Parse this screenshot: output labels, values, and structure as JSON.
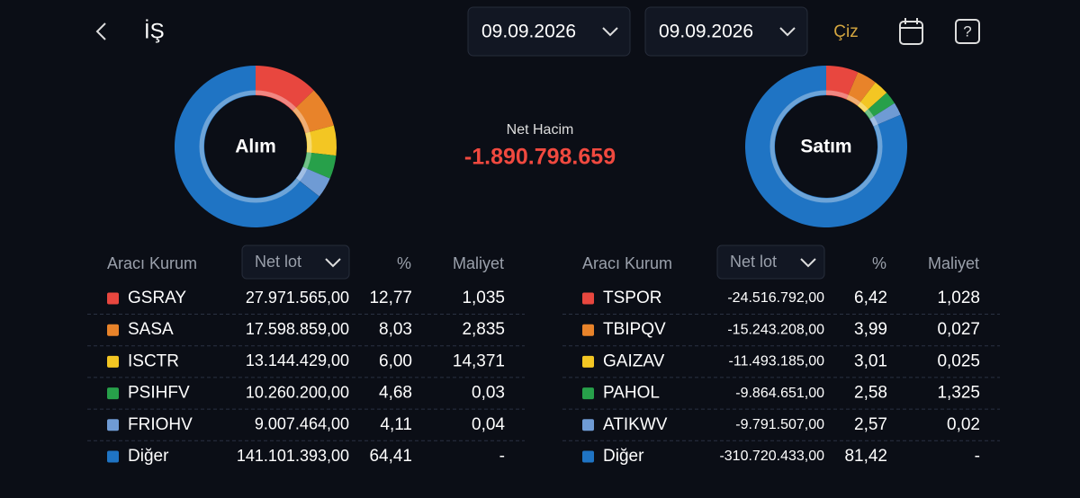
{
  "header": {
    "title": "İŞ",
    "date_from": "09.09.2026",
    "date_to": "09.09.2026",
    "draw_button": "Çiz"
  },
  "summary": {
    "label": "Net Hacim",
    "value": "-1.890.798.659"
  },
  "buy": {
    "center_label": "Alım",
    "columns": {
      "broker": "Aracı Kurum",
      "net_lot": "Net lot",
      "pct": "%",
      "cost": "Maliyet"
    },
    "rows": [
      {
        "name": "GSRAY",
        "color": "#e8473f",
        "net_lot": "27.971.565,00",
        "pct": {
          "value": 12.77,
          "label": "12,77"
        },
        "cost": "1,035"
      },
      {
        "name": "SASA",
        "color": "#e8832a",
        "net_lot": "17.598.859,00",
        "pct": {
          "value": 8.03,
          "label": "8,03"
        },
        "cost": "2,835"
      },
      {
        "name": "ISCTR",
        "color": "#f3c623",
        "net_lot": "13.144.429,00",
        "pct": {
          "value": 6.0,
          "label": "6,00"
        },
        "cost": "14,371"
      },
      {
        "name": "PSIHFV",
        "color": "#27a04a",
        "net_lot": "10.260.200,00",
        "pct": {
          "value": 4.68,
          "label": "4,68"
        },
        "cost": "0,03"
      },
      {
        "name": "FRIOHV",
        "color": "#6f9bd4",
        "net_lot": "9.007.464,00",
        "pct": {
          "value": 4.11,
          "label": "4,11"
        },
        "cost": "0,04"
      },
      {
        "name": "Diğer",
        "color": "#1f74c4",
        "net_lot": "141.101.393,00",
        "pct": {
          "value": 64.41,
          "label": "64,41"
        },
        "cost": "-"
      }
    ]
  },
  "sell": {
    "center_label": "Satım",
    "columns": {
      "broker": "Aracı Kurum",
      "net_lot": "Net lot",
      "pct": "%",
      "cost": "Maliyet"
    },
    "rows": [
      {
        "name": "TSPOR",
        "color": "#e8473f",
        "net_lot": "-24.516.792,00",
        "pct": {
          "value": 6.42,
          "label": "6,42"
        },
        "cost": "1,028"
      },
      {
        "name": "TBIPQV",
        "color": "#e8832a",
        "net_lot": "-15.243.208,00",
        "pct": {
          "value": 3.99,
          "label": "3,99"
        },
        "cost": "0,027"
      },
      {
        "name": "GAIZAV",
        "color": "#f3c623",
        "net_lot": "-11.493.185,00",
        "pct": {
          "value": 3.01,
          "label": "3,01"
        },
        "cost": "0,025"
      },
      {
        "name": "PAHOL",
        "color": "#27a04a",
        "net_lot": "-9.864.651,00",
        "pct": {
          "value": 2.58,
          "label": "2,58"
        },
        "cost": "1,325"
      },
      {
        "name": "ATIKWV",
        "color": "#6f9bd4",
        "net_lot": "-9.791.507,00",
        "pct": {
          "value": 2.57,
          "label": "2,57"
        },
        "cost": "0,02"
      },
      {
        "name": "Diğer",
        "color": "#1f74c4",
        "net_lot": "-310.720.433,00",
        "pct": {
          "value": 81.42,
          "label": "81,42"
        },
        "cost": "-"
      }
    ]
  }
}
